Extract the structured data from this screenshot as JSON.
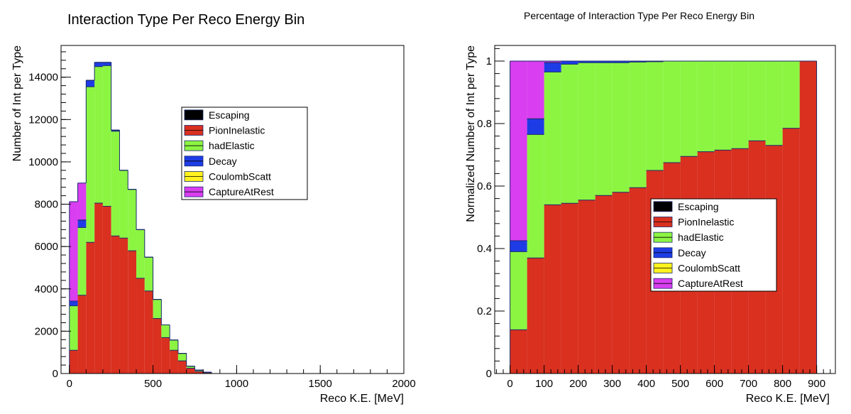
{
  "chart_data": [
    {
      "type": "bar",
      "stacked": true,
      "title": "Interaction Type Per Reco Energy Bin",
      "xlabel": "Reco K.E. [MeV]",
      "ylabel": "Number of Int per Type",
      "xlim": [
        -50,
        2000
      ],
      "ylim": [
        0,
        15500
      ],
      "xticks": [
        "0",
        "500",
        "1000",
        "1500",
        "2000"
      ],
      "yticks": [
        "0",
        "2000",
        "4000",
        "6000",
        "8000",
        "10000",
        "12000",
        "14000"
      ],
      "bin_edges": [
        0,
        50,
        100,
        150,
        200,
        250,
        300,
        350,
        400,
        450,
        500,
        550,
        600,
        650,
        700,
        750,
        800,
        850
      ],
      "legend_position": "upper-right",
      "series": [
        {
          "name": "Escaping",
          "color": "#000000",
          "values": [
            0,
            0,
            0,
            0,
            0,
            0,
            0,
            0,
            0,
            0,
            0,
            0,
            0,
            0,
            0,
            0,
            0
          ]
        },
        {
          "name": "PionInelastic",
          "color": "#d93020",
          "values": [
            1100,
            3700,
            6200,
            8050,
            7900,
            6500,
            6400,
            5800,
            4500,
            3900,
            2600,
            1700,
            1100,
            600,
            250,
            100,
            40
          ]
        },
        {
          "name": "hadElastic",
          "color": "#8cf542",
          "values": [
            2100,
            3200,
            7350,
            6450,
            6650,
            4950,
            3200,
            2900,
            2300,
            1600,
            900,
            600,
            480,
            350,
            100,
            60,
            20
          ]
        },
        {
          "name": "Decay",
          "color": "#1e3ce6",
          "values": [
            220,
            350,
            300,
            200,
            150,
            50,
            0,
            0,
            0,
            0,
            0,
            0,
            0,
            0,
            0,
            0,
            0
          ]
        },
        {
          "name": "CoulombScatt",
          "color": "#fff21e",
          "values": [
            0,
            0,
            0,
            0,
            0,
            0,
            0,
            0,
            0,
            0,
            0,
            0,
            0,
            0,
            0,
            0,
            0
          ]
        },
        {
          "name": "CaptureAtRest",
          "color": "#d93ef0",
          "values": [
            4700,
            1750,
            0,
            0,
            0,
            0,
            0,
            0,
            0,
            0,
            0,
            0,
            0,
            0,
            0,
            0,
            0
          ]
        }
      ]
    },
    {
      "type": "bar",
      "stacked": true,
      "title": "Percentage of Interaction Type Per Reco Energy Bin",
      "xlabel": "Reco K.E. [MeV]",
      "ylabel": "Normalized Number of Int per Type",
      "xlim": [
        -45,
        955
      ],
      "ylim": [
        0,
        1.05
      ],
      "xticks": [
        "0",
        "100",
        "200",
        "300",
        "400",
        "500",
        "600",
        "700",
        "800",
        "900"
      ],
      "yticks": [
        "0",
        "0.2",
        "0.4",
        "0.6",
        "0.8",
        "1"
      ],
      "bin_edges": [
        0,
        50,
        100,
        150,
        200,
        250,
        300,
        350,
        400,
        450,
        500,
        550,
        600,
        650,
        700,
        750,
        800,
        850,
        900
      ],
      "legend_position": "center-right",
      "series": [
        {
          "name": "Escaping",
          "color": "#000000",
          "values": [
            0,
            0,
            0,
            0,
            0,
            0,
            0,
            0,
            0,
            0,
            0,
            0,
            0,
            0,
            0,
            0,
            0,
            0
          ]
        },
        {
          "name": "PionInelastic",
          "color": "#d93020",
          "values": [
            0.14,
            0.37,
            0.54,
            0.545,
            0.555,
            0.57,
            0.58,
            0.595,
            0.65,
            0.675,
            0.695,
            0.71,
            0.715,
            0.72,
            0.745,
            0.73,
            0.785,
            1.0
          ]
        },
        {
          "name": "hadElastic",
          "color": "#8cf542",
          "values": [
            0.25,
            0.395,
            0.425,
            0.445,
            0.44,
            0.425,
            0.415,
            0.402,
            0.348,
            0.325,
            0.305,
            0.29,
            0.285,
            0.28,
            0.255,
            0.27,
            0.215,
            0
          ]
        },
        {
          "name": "Decay",
          "color": "#1e3ce6",
          "values": [
            0.035,
            0.05,
            0.03,
            0.01,
            0.005,
            0.005,
            0.005,
            0.003,
            0.002,
            0,
            0,
            0,
            0,
            0,
            0,
            0,
            0,
            0
          ]
        },
        {
          "name": "CoulombScatt",
          "color": "#fff21e",
          "values": [
            0,
            0,
            0,
            0,
            0,
            0,
            0,
            0,
            0,
            0,
            0,
            0,
            0,
            0,
            0,
            0,
            0,
            0
          ]
        },
        {
          "name": "CaptureAtRest",
          "color": "#d93ef0",
          "values": [
            0.575,
            0.185,
            0.005,
            0,
            0,
            0,
            0,
            0,
            0,
            0,
            0,
            0,
            0,
            0,
            0,
            0,
            0,
            0
          ]
        }
      ]
    }
  ]
}
